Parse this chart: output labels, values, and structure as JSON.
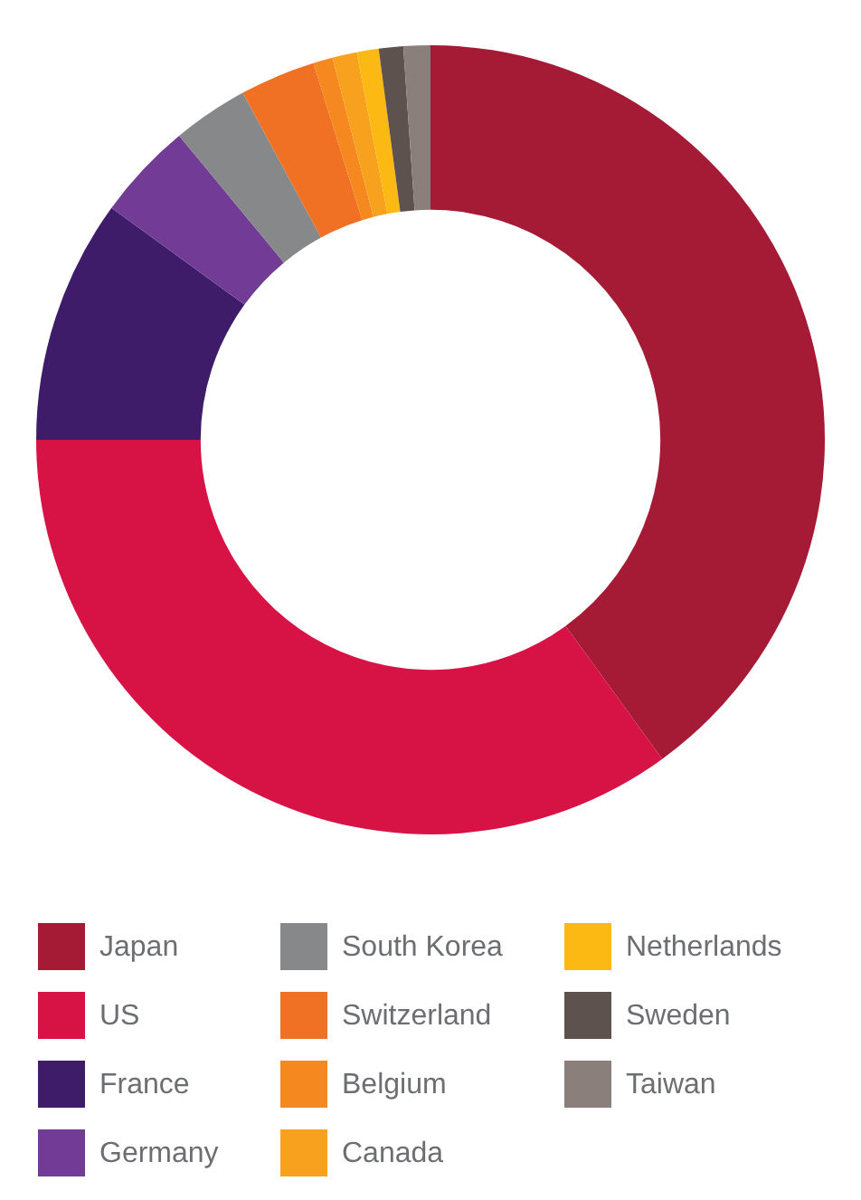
{
  "chart_data": {
    "type": "donut",
    "categories": [
      "Japan",
      "US",
      "France",
      "Germany",
      "South Korea",
      "Switzerland",
      "Belgium",
      "Canada",
      "Netherlands",
      "Sweden",
      "Taiwan"
    ],
    "values": [
      40,
      35,
      10,
      4,
      3.1,
      3.1,
      0.8,
      1,
      0.9,
      1,
      1.1
    ],
    "colors": [
      "#a51a34",
      "#d71346",
      "#3f1c6a",
      "#723c96",
      "#87888a",
      "#f07024",
      "#f5891f",
      "#f8a11f",
      "#fdb913",
      "#5e524e",
      "#8b7f7b"
    ],
    "legend": "bottom"
  }
}
